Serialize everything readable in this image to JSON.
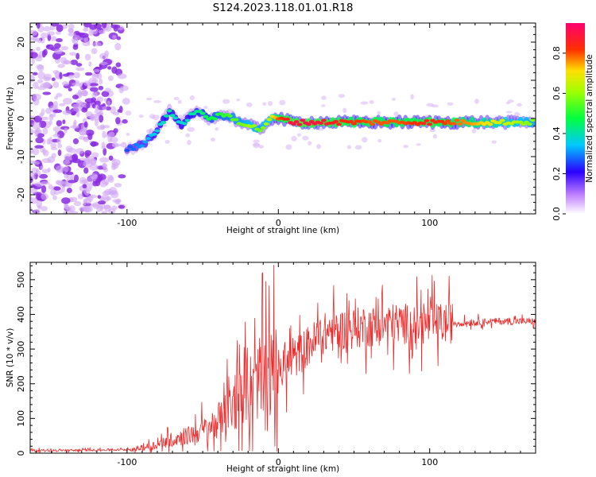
{
  "title": "S124.2023.118.01.01.R18",
  "colors": {
    "snr_line": "#ee2a2a",
    "noise_blob": "#8a2be2"
  },
  "chart_data": [
    {
      "type": "heatmap",
      "name": "spectrogram",
      "xlabel": "Height of straight line (km)",
      "ylabel": "Frequency (Hz)",
      "xlim": [
        -164,
        170
      ],
      "ylim": [
        -25,
        25
      ],
      "x_ticks": [
        -100,
        0,
        100
      ],
      "y_ticks": [
        -20,
        -10,
        0,
        10,
        20
      ],
      "colormap": "rainbow (violet to red)",
      "colorbar": {
        "label": "Normalized spectral amplitude",
        "range": [
          0.0,
          0.95
        ],
        "ticks": [
          0.0,
          0.2,
          0.4,
          0.6,
          0.8
        ]
      },
      "ridge": {
        "x": [
          -100,
          -90,
          -80,
          -72,
          -65,
          -55,
          -45,
          -35,
          -25,
          -18,
          -12,
          -5,
          0,
          10,
          20,
          40,
          60,
          80,
          100,
          130,
          170
        ],
        "frequency": [
          -8,
          -7,
          -3,
          2,
          -2,
          2,
          0,
          1,
          -1,
          -2,
          -3,
          0,
          0,
          -1,
          -1,
          -1,
          -1,
          -1,
          -1,
          -1,
          -1
        ],
        "amplitude": [
          0.25,
          0.3,
          0.35,
          0.4,
          0.35,
          0.4,
          0.45,
          0.5,
          0.55,
          0.6,
          0.55,
          0.65,
          0.8,
          0.9,
          0.9,
          0.85,
          0.8,
          0.8,
          0.85,
          0.75,
          0.55
        ]
      },
      "noise_region_x": [
        -164,
        -98
      ]
    },
    {
      "type": "line",
      "name": "snr",
      "xlabel": "Height of straight line (km)",
      "ylabel": "SNR (10 * v/v)",
      "xlim": [
        -164,
        170
      ],
      "ylim": [
        0,
        550
      ],
      "x_ticks": [
        -100,
        0,
        100
      ],
      "y_ticks": [
        0,
        100,
        200,
        300,
        400,
        500
      ],
      "series": [
        {
          "x": [
            -164,
            -140,
            -120,
            -100,
            -90,
            -80,
            -70,
            -60,
            -50,
            -40,
            -30,
            -20,
            -10,
            0,
            10,
            20,
            30,
            40,
            50,
            60,
            70,
            80,
            90,
            100,
            110,
            120,
            130,
            140,
            150,
            160,
            170
          ],
          "values": [
            8,
            8,
            9,
            10,
            15,
            25,
            40,
            50,
            65,
            95,
            135,
            185,
            215,
            240,
            270,
            310,
            345,
            355,
            360,
            365,
            370,
            375,
            370,
            370,
            375,
            375,
            378,
            380,
            380,
            380,
            380
          ]
        }
      ]
    }
  ]
}
